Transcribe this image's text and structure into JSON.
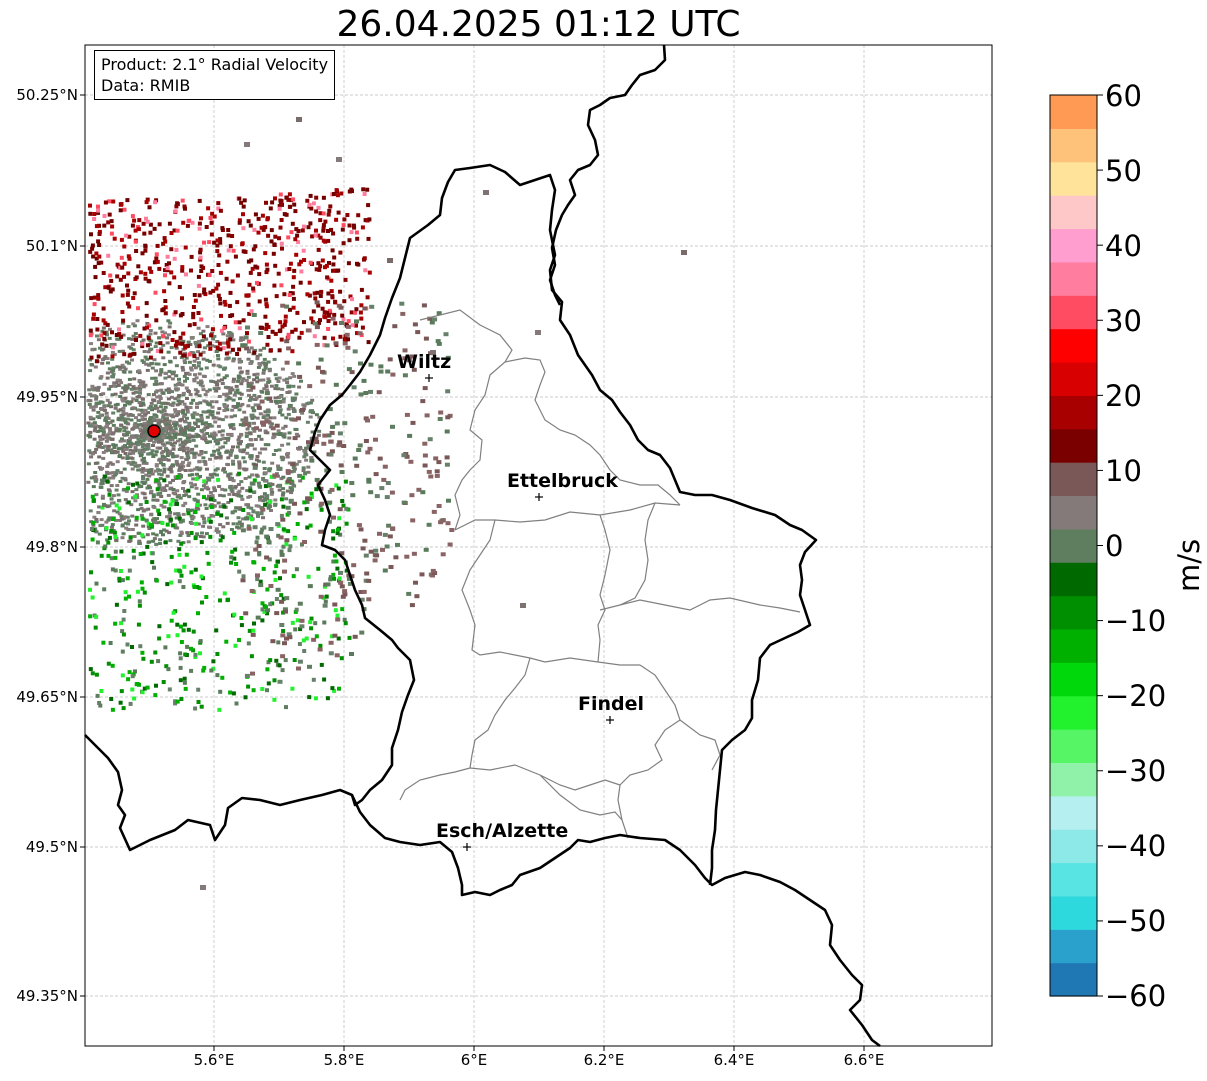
{
  "title": "26.04.2025 01:12 UTC",
  "info": {
    "product": "Product: 2.1° Radial Velocity",
    "data": "Data: RMIB"
  },
  "lat_ticks": [
    "50.25°N",
    "50.1°N",
    "49.95°N",
    "49.8°N",
    "49.65°N",
    "49.5°N",
    "49.35°N"
  ],
  "lon_ticks": [
    "5.6°E",
    "5.8°E",
    "6°E",
    "6.2°E",
    "6.4°E",
    "6.6°E"
  ],
  "cities": [
    "Wiltz",
    "Ettelbruck",
    "Findel",
    "Esch/Alzette"
  ],
  "colorbar": {
    "unit": "m/s",
    "ticks": [
      "60",
      "50",
      "40",
      "30",
      "20",
      "10",
      "0",
      "−10",
      "−20",
      "−30",
      "−40",
      "−50",
      "−60"
    ],
    "range": [
      -60,
      60
    ],
    "colors": [
      "#1f77b4",
      "#2aa0cc",
      "#2dd9dd",
      "#59e4e4",
      "#8de8e8",
      "#b6efef",
      "#8ff2a8",
      "#55f566",
      "#22f22e",
      "#00d80c",
      "#00b000",
      "#008f00",
      "#006a00",
      "#5f7d5f",
      "#857a7a",
      "#7a5858",
      "#7a0000",
      "#a80000",
      "#d80000",
      "#ff0000",
      "#ff4c62",
      "#ff7ea0",
      "#ff9ecf",
      "#ffc8c8",
      "#ffe39a",
      "#ffc27a",
      "#ff9a55"
    ]
  },
  "radar": {
    "site_color": "#e00000"
  }
}
